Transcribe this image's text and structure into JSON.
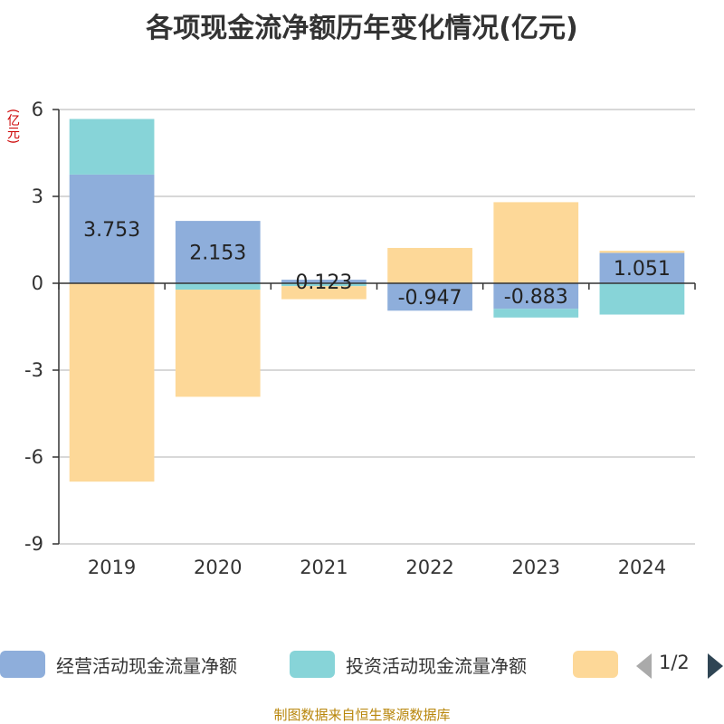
{
  "chart_data": {
    "type": "bar",
    "stacked": true,
    "title": "各项现金流净额历年变化情况(亿元)",
    "ylabel": "(亿元)",
    "xlabel": "",
    "ylim": [
      -9,
      6
    ],
    "yticks": [
      6,
      3,
      0,
      -3,
      -6,
      -9
    ],
    "categories": [
      "2019",
      "2020",
      "2021",
      "2022",
      "2023",
      "2024"
    ],
    "series": [
      {
        "name": "经营活动现金流量净额",
        "color": "#8eaedb",
        "values": [
          3.753,
          2.153,
          0.123,
          -0.947,
          -0.883,
          1.051
        ],
        "labels": [
          "3.753",
          "2.153",
          "0.123",
          "-0.947",
          "-0.883",
          "1.051"
        ]
      },
      {
        "name": "投资活动现金流量净额",
        "color": "#87d4d8",
        "values": [
          1.92,
          -0.22,
          -0.1,
          0,
          -0.3,
          -1.08
        ]
      },
      {
        "name": "",
        "color": "#fdd898",
        "values": [
          -6.85,
          -3.7,
          -0.45,
          1.22,
          2.8,
          0.07
        ]
      }
    ],
    "legend_position": "bottom",
    "grid": true
  },
  "legend": {
    "page_indicator": "1/2"
  },
  "source_note": "制图数据来自恒生聚源数据库"
}
